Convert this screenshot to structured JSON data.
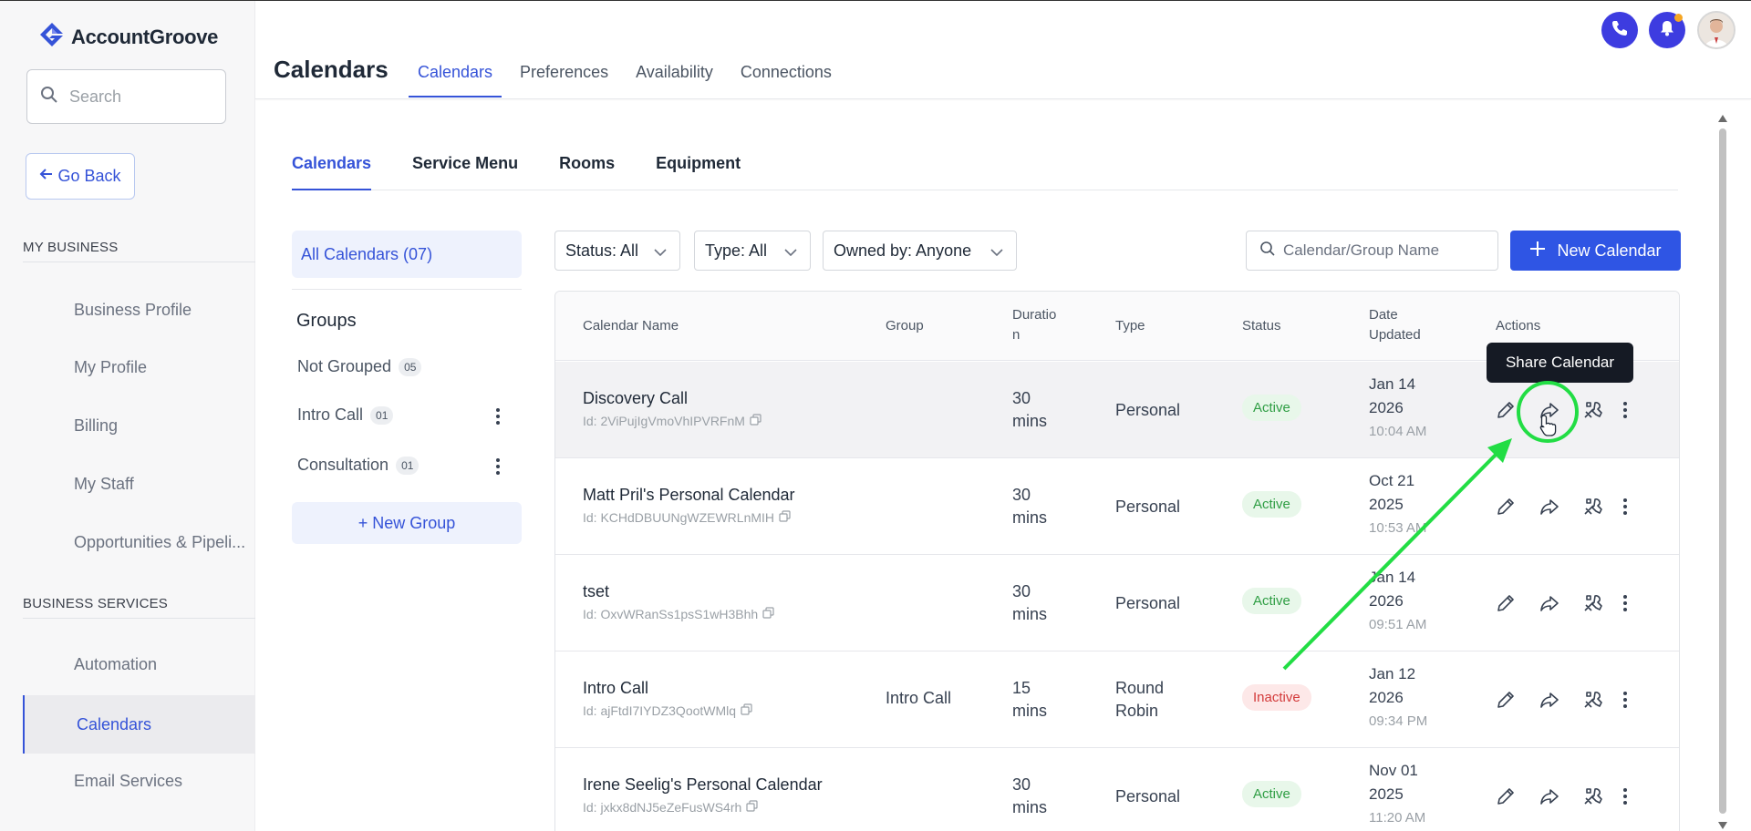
{
  "app": {
    "brand": "AccountGroove"
  },
  "sidebar": {
    "search_placeholder": "Search",
    "go_back": "Go Back",
    "sections": [
      {
        "title": "MY BUSINESS",
        "items": [
          "Business Profile",
          "My Profile",
          "Billing",
          "My Staff",
          "Opportunities & Pipeli..."
        ]
      },
      {
        "title": "BUSINESS SERVICES",
        "items": [
          "Automation",
          "Calendars",
          "Email Services"
        ]
      }
    ],
    "active_item": "Calendars"
  },
  "header": {
    "title": "Calendars",
    "tabs": [
      "Calendars",
      "Preferences",
      "Availability",
      "Connections"
    ],
    "active_tab": "Calendars"
  },
  "sub_tabs": {
    "items": [
      "Calendars",
      "Service Menu",
      "Rooms",
      "Equipment"
    ],
    "active": "Calendars"
  },
  "groups_panel": {
    "all_calendars": "All Calendars (07)",
    "title": "Groups",
    "groups": [
      {
        "name": "Not Grouped",
        "count": "05",
        "menu": false
      },
      {
        "name": "Intro Call",
        "count": "01",
        "menu": true
      },
      {
        "name": "Consultation",
        "count": "01",
        "menu": true
      }
    ],
    "new_group": "+ New Group"
  },
  "filters": {
    "status": "Status: All",
    "type": "Type: All",
    "owned_by": "Owned by: Anyone",
    "search_placeholder": "Calendar/Group Name",
    "new_calendar": "New Calendar"
  },
  "table": {
    "columns": {
      "name": "Calendar Name",
      "group": "Group",
      "duration_1": "Duratio",
      "duration_2": "n",
      "type": "Type",
      "status": "Status",
      "date_1": "Date",
      "date_2": "Updated",
      "actions": "Actions"
    },
    "rows": [
      {
        "name": "Discovery Call",
        "id": "Id: 2ViPujIgVmoVhIPVRFnM",
        "group": "",
        "dur_num": "30",
        "dur_unit": "mins",
        "type_1": "Personal",
        "type_2": "",
        "status": "Active",
        "date_1": "Jan 14",
        "date_2": "2026",
        "time": "10:04 AM"
      },
      {
        "name": "Matt Pril's Personal Calendar",
        "id": "Id: KCHdDBUUNgWZEWRLnMIH",
        "group": "",
        "dur_num": "30",
        "dur_unit": "mins",
        "type_1": "Personal",
        "type_2": "",
        "status": "Active",
        "date_1": "Oct 21",
        "date_2": "2025",
        "time": "10:53 AM"
      },
      {
        "name": "tset",
        "id": "Id: OxvWRanSs1psS1wH3Bhh",
        "group": "",
        "dur_num": "30",
        "dur_unit": "mins",
        "type_1": "Personal",
        "type_2": "",
        "status": "Active",
        "date_1": "Jan 14",
        "date_2": "2026",
        "time": "09:51 AM"
      },
      {
        "name": "Intro Call",
        "id": "Id: ajFtdI7IYDZ3QootWMlq",
        "group": "Intro Call",
        "dur_num": "15",
        "dur_unit": "mins",
        "type_1": "Round",
        "type_2": "Robin",
        "status": "Inactive",
        "date_1": "Jan 12",
        "date_2": "2026",
        "time": "09:34 PM"
      },
      {
        "name": "Irene Seelig's Personal Calendar",
        "id": "Id: jxkx8dNJ5eZeFusWS4rh",
        "group": "",
        "dur_num": "30",
        "dur_unit": "mins",
        "type_1": "Personal",
        "type_2": "",
        "status": "Active",
        "date_1": "Nov 01",
        "date_2": "2025",
        "time": "11:20 AM"
      }
    ]
  },
  "tooltip": "Share Calendar",
  "colors": {
    "accent": "#3553d8",
    "primary_button": "#2f55e4",
    "active_green": "#2f9e44",
    "inactive_red": "#d33a3a",
    "annotation_green": "#22dd44"
  }
}
